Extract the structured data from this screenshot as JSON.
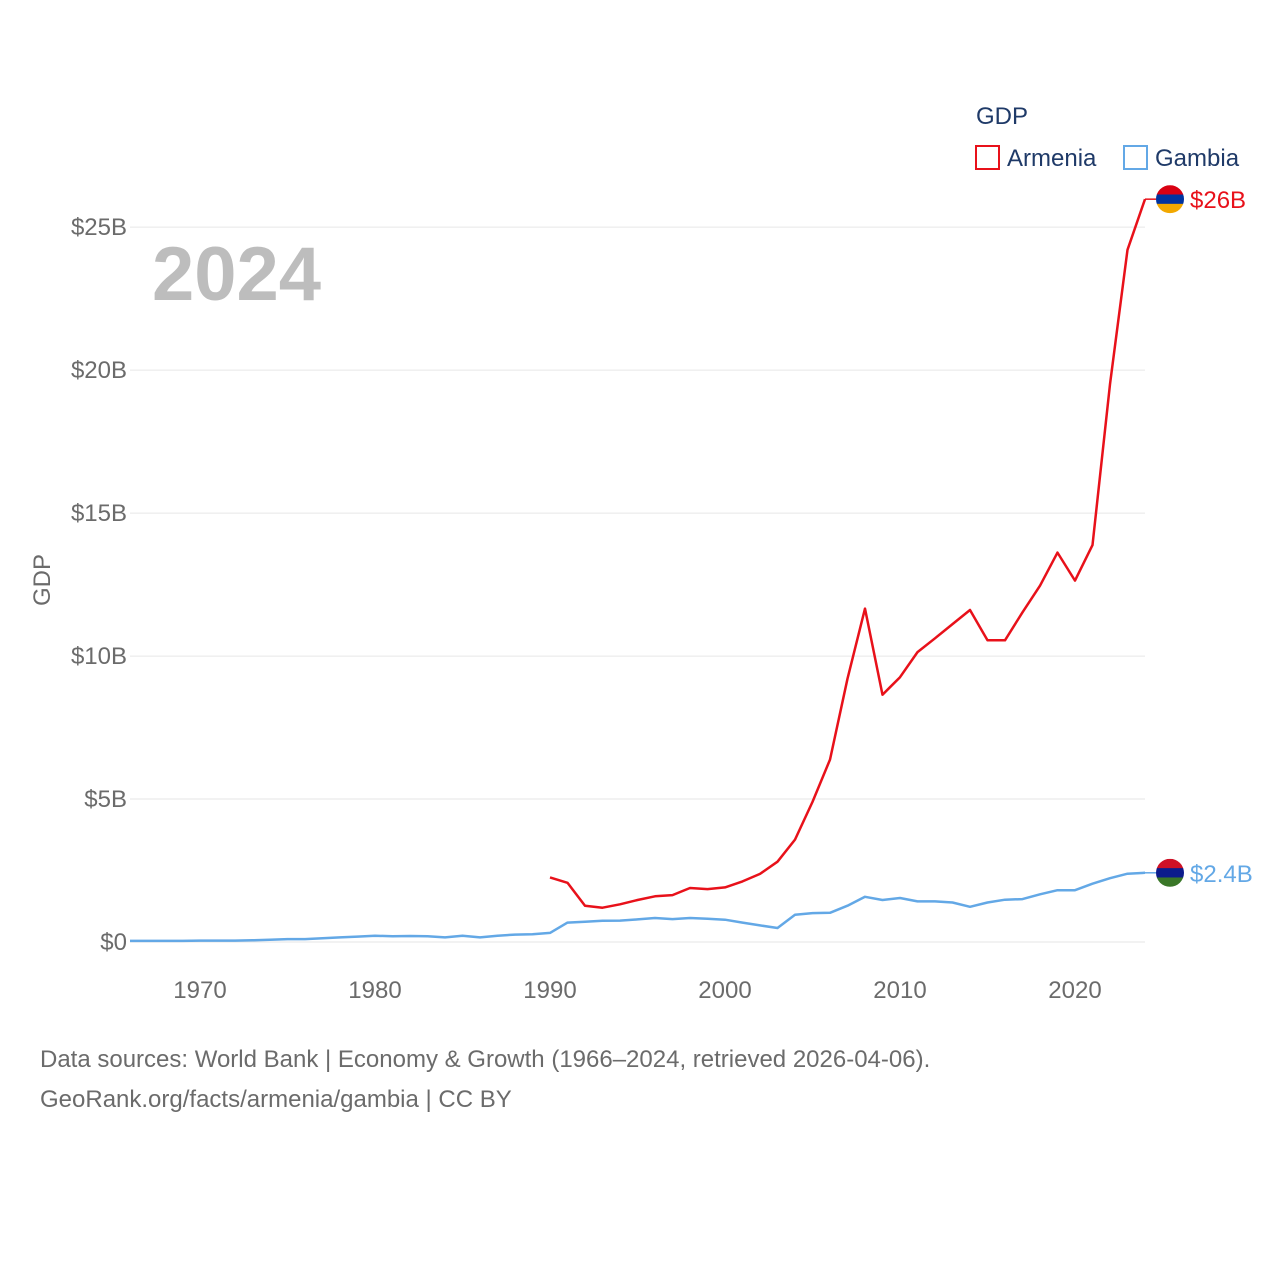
{
  "chart_data": {
    "type": "line",
    "year_label": "2024",
    "ylabel": "GDP",
    "legend_title": "GDP",
    "legend_position": "top-right",
    "xlim": [
      1966,
      2024
    ],
    "ylim": [
      0,
      27
    ],
    "x_ticks": [
      1970,
      1980,
      1990,
      2000,
      2010,
      2020
    ],
    "x_tick_labels": [
      "1970",
      "1980",
      "1990",
      "2000",
      "2010",
      "2020"
    ],
    "y_ticks": [
      0,
      5,
      10,
      15,
      20,
      25
    ],
    "y_tick_labels": [
      "$0",
      "$5B",
      "$10B",
      "$15B",
      "$20B",
      "$25B"
    ],
    "series": [
      {
        "name": "Armenia",
        "color": "#e8111a",
        "end_label": "$26B",
        "flag_colors": [
          "#d90012",
          "#0033a0",
          "#f2a800"
        ],
        "x": [
          1990,
          1991,
          1992,
          1993,
          1994,
          1995,
          1996,
          1997,
          1998,
          1999,
          2000,
          2001,
          2002,
          2003,
          2004,
          2005,
          2006,
          2007,
          2008,
          2009,
          2010,
          2011,
          2012,
          2013,
          2014,
          2015,
          2016,
          2017,
          2018,
          2019,
          2020,
          2021,
          2022,
          2023,
          2024
        ],
        "values": [
          2.26,
          2.07,
          1.27,
          1.2,
          1.32,
          1.47,
          1.6,
          1.64,
          1.89,
          1.85,
          1.91,
          2.12,
          2.38,
          2.81,
          3.58,
          4.9,
          6.38,
          9.21,
          11.66,
          8.65,
          9.26,
          10.14,
          10.62,
          11.12,
          11.61,
          10.55,
          10.55,
          11.53,
          12.46,
          13.62,
          12.64,
          13.88,
          19.51,
          24.21,
          25.98
        ]
      },
      {
        "name": "Gambia",
        "color": "#63a8e6",
        "end_label": "$2.4B",
        "flag_colors": [
          "#ce1126",
          "#0c1c8c",
          "#3a7728"
        ],
        "x": [
          1966,
          1967,
          1968,
          1969,
          1970,
          1971,
          1972,
          1973,
          1974,
          1975,
          1976,
          1977,
          1978,
          1979,
          1980,
          1981,
          1982,
          1983,
          1984,
          1985,
          1986,
          1987,
          1988,
          1989,
          1990,
          1991,
          1992,
          1993,
          1994,
          1995,
          1996,
          1997,
          1998,
          1999,
          2000,
          2001,
          2002,
          2003,
          2004,
          2005,
          2006,
          2007,
          2008,
          2009,
          2010,
          2011,
          2012,
          2013,
          2014,
          2015,
          2016,
          2017,
          2018,
          2019,
          2020,
          2021,
          2022,
          2023,
          2024
        ],
        "values": [
          0.04,
          0.04,
          0.04,
          0.04,
          0.05,
          0.05,
          0.05,
          0.06,
          0.08,
          0.1,
          0.1,
          0.13,
          0.16,
          0.19,
          0.22,
          0.2,
          0.21,
          0.2,
          0.16,
          0.22,
          0.16,
          0.22,
          0.26,
          0.27,
          0.32,
          0.68,
          0.71,
          0.74,
          0.75,
          0.79,
          0.84,
          0.8,
          0.84,
          0.81,
          0.78,
          0.68,
          0.58,
          0.49,
          0.95,
          1.01,
          1.02,
          1.27,
          1.58,
          1.47,
          1.54,
          1.42,
          1.42,
          1.38,
          1.23,
          1.38,
          1.48,
          1.5,
          1.67,
          1.81,
          1.81,
          2.04,
          2.23,
          2.39,
          2.42
        ]
      }
    ]
  },
  "footer": {
    "line1": "Data sources: World Bank | Economy & Growth (1966–2024, retrieved 2026-04-06).",
    "line2": "GeoRank.org/facts/armenia/gambia | CC BY"
  }
}
